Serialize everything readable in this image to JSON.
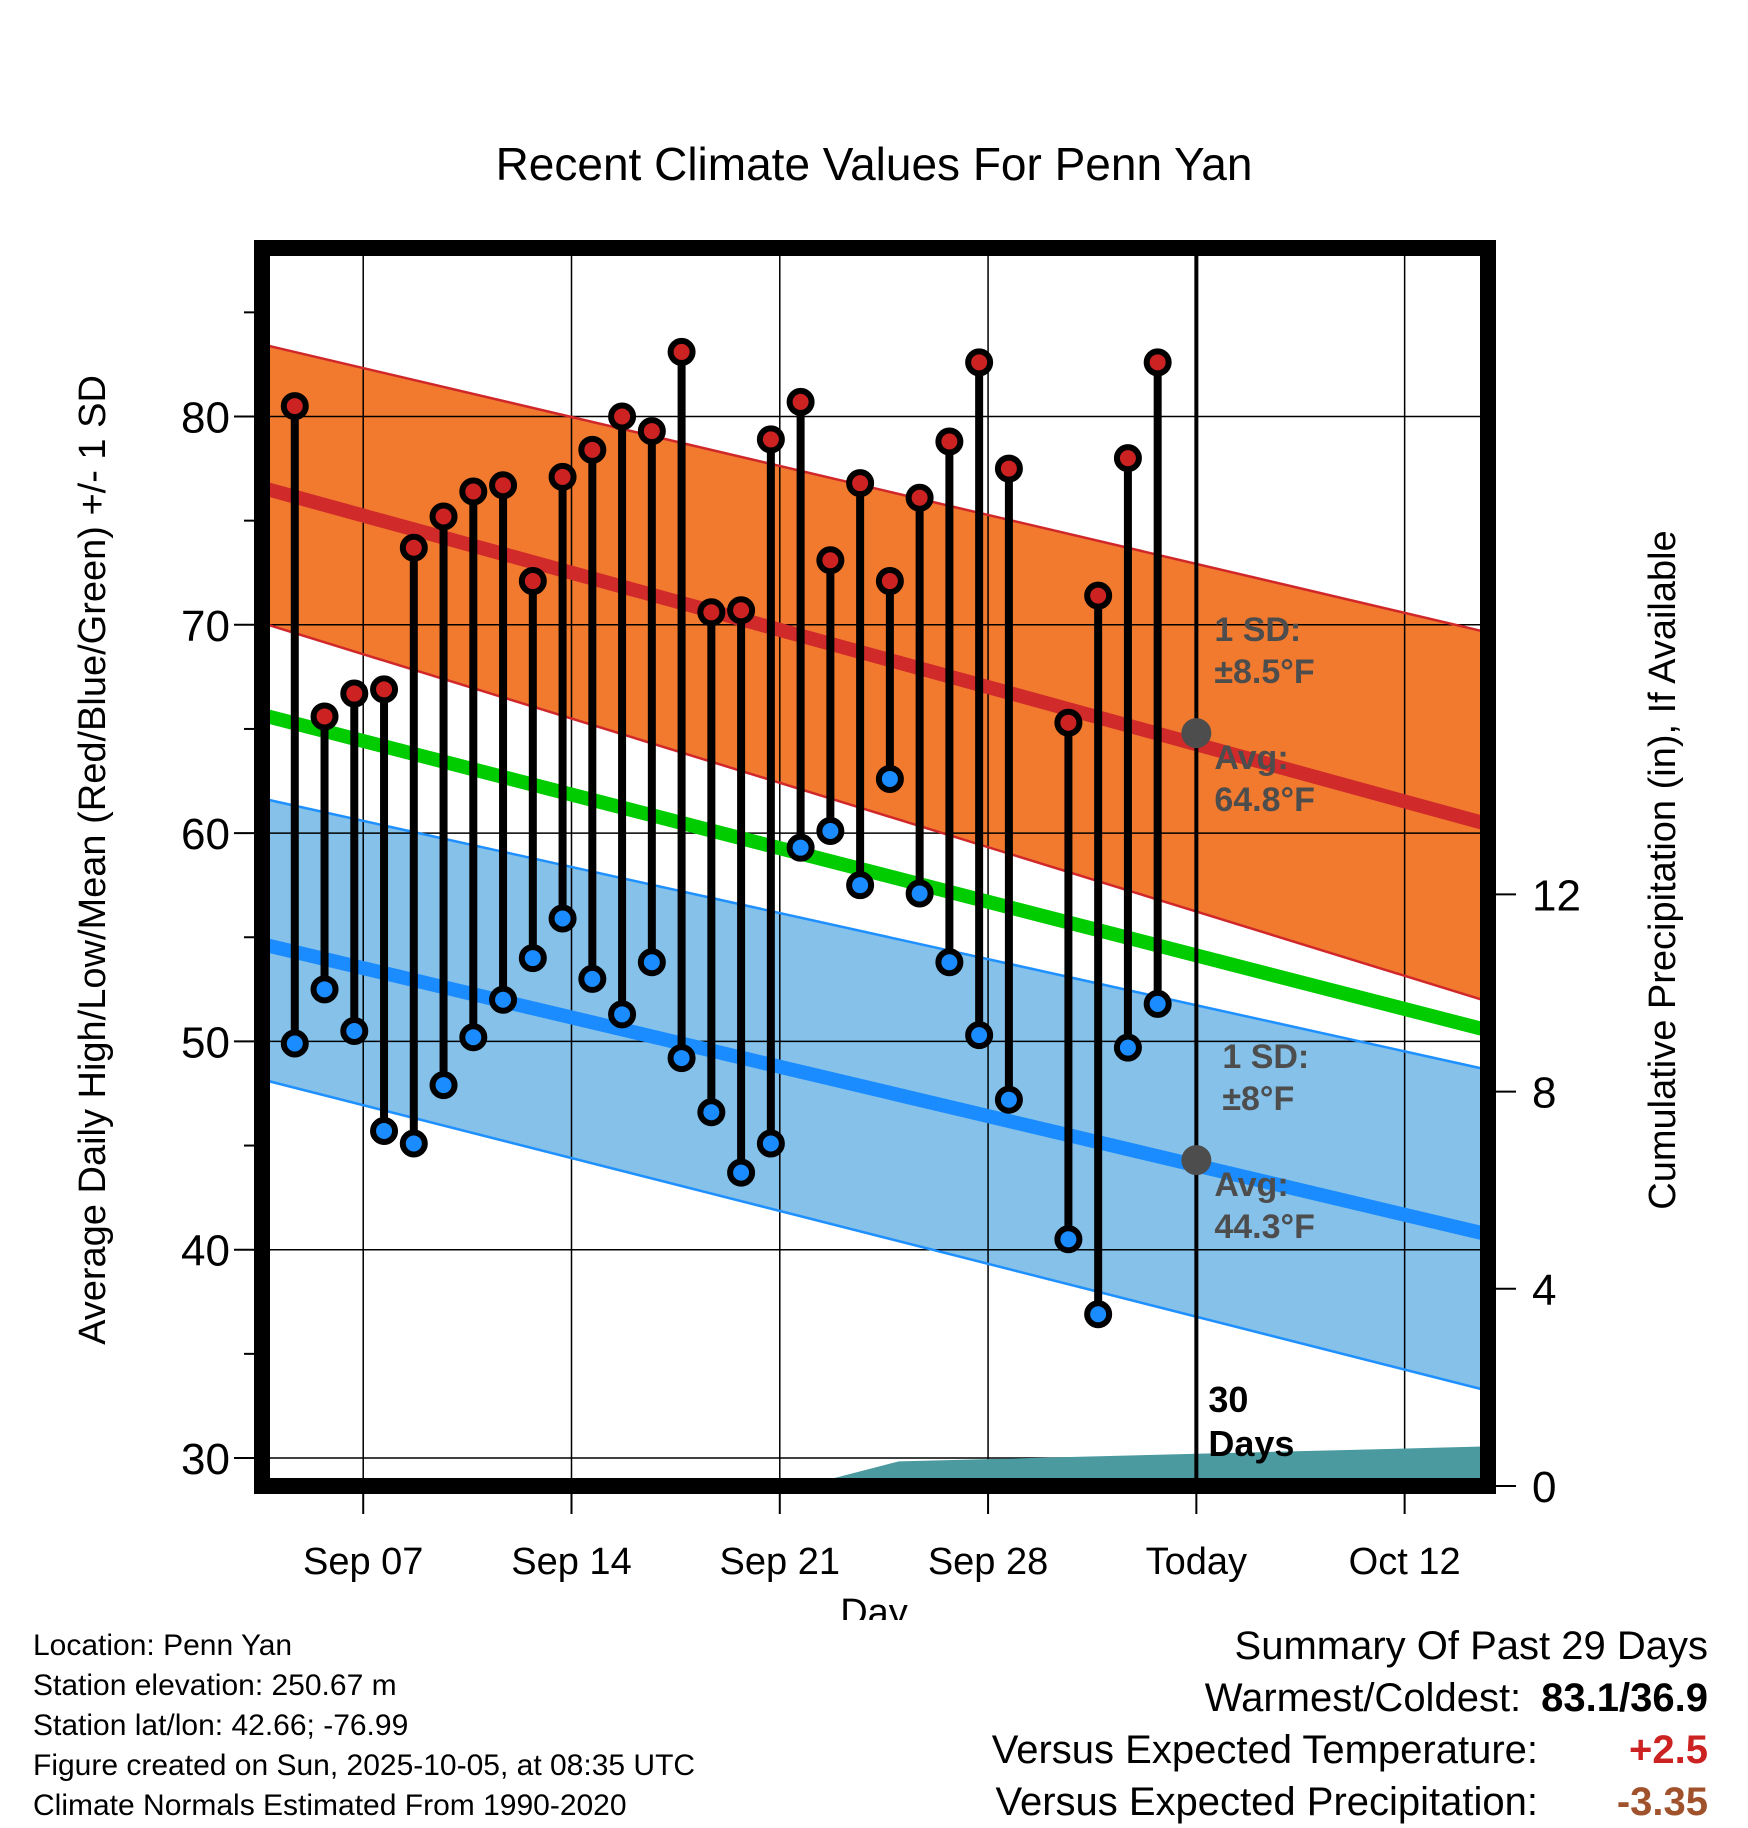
{
  "chart_data": {
    "type": "line",
    "title": "Recent Climate Values For Penn Yan",
    "xlabel": "Day",
    "ylabel": "Average Daily High/Low/Mean (Red/Blue/Green) +/- 1 SD",
    "y2label": "Cumulative Precipitation (in), If Available",
    "ylim": [
      29,
      88
    ],
    "y2lim": [
      0,
      35
    ],
    "yticks": [
      30,
      40,
      50,
      60,
      70,
      80
    ],
    "y2ticks": [
      0,
      4,
      8,
      12
    ],
    "x_tick_labels": [
      {
        "day": 7,
        "label": "Sep 07"
      },
      {
        "day": 14,
        "label": "Sep 14"
      },
      {
        "day": 21,
        "label": "Sep 21"
      },
      {
        "day": 28,
        "label": "Sep 28"
      },
      {
        "day": 35,
        "label": "Today"
      },
      {
        "day": 42,
        "label": "Oct 12"
      }
    ],
    "xlim": [
      3.8,
      44.6
    ],
    "today_day": 35,
    "today_label": "30\nDays",
    "normal_high": {
      "avg_start": 76.5,
      "avg_end": 60.5,
      "upper_start": 83.4,
      "upper_end": 69.7,
      "lower_start": 70.0,
      "lower_end": 52.0
    },
    "normal_low": {
      "avg_start": 54.6,
      "avg_end": 40.8,
      "upper_start": 61.6,
      "upper_end": 48.7,
      "lower_start": 48.1,
      "lower_end": 33.3
    },
    "normal_mean": {
      "start": 65.6,
      "end": 50.6
    },
    "precip_normal": {
      "start_day": 21.8,
      "ramp_end_day": 25.0,
      "value_at_ramp_end": 0.5,
      "end_value": 0.8
    },
    "annotations": {
      "high_sd_label": "1 SD:",
      "high_sd_value": "±8.5°F",
      "high_avg_label": "Avg:",
      "high_avg_value": "64.8°F",
      "low_sd_label": "1 SD:",
      "low_sd_value": "±8°F",
      "low_avg_label": "Avg:",
      "low_avg_value": "44.3°F",
      "today_high_avg": 64.8,
      "today_low_avg": 44.3
    },
    "series": [
      {
        "name": "Daily High",
        "color": "#cc2222",
        "points": [
          [
            4.7,
            80.5
          ],
          [
            5.7,
            65.6
          ],
          [
            6.7,
            66.7
          ],
          [
            7.7,
            66.9
          ],
          [
            8.7,
            73.7
          ],
          [
            9.7,
            75.2
          ],
          [
            10.7,
            76.4
          ],
          [
            11.7,
            76.7
          ],
          [
            12.7,
            72.1
          ],
          [
            13.7,
            77.1
          ],
          [
            14.7,
            78.4
          ],
          [
            15.7,
            80.0
          ],
          [
            16.7,
            79.3
          ],
          [
            17.7,
            83.1
          ],
          [
            18.7,
            70.6
          ],
          [
            19.7,
            70.7
          ],
          [
            20.7,
            78.9
          ],
          [
            21.7,
            80.7
          ],
          [
            22.7,
            73.1
          ],
          [
            23.7,
            76.8
          ],
          [
            24.7,
            72.1
          ],
          [
            25.7,
            76.1
          ],
          [
            26.7,
            78.8
          ],
          [
            27.7,
            82.6
          ],
          [
            28.7,
            77.5
          ],
          [
            30.7,
            65.3
          ],
          [
            31.7,
            71.4
          ],
          [
            32.7,
            78.0
          ],
          [
            33.7,
            82.6
          ]
        ]
      },
      {
        "name": "Daily Low",
        "color": "#1a8cff",
        "points": [
          [
            4.7,
            49.9
          ],
          [
            5.7,
            52.5
          ],
          [
            6.7,
            50.5
          ],
          [
            7.7,
            45.7
          ],
          [
            8.7,
            45.1
          ],
          [
            9.7,
            47.9
          ],
          [
            10.7,
            50.2
          ],
          [
            11.7,
            52.0
          ],
          [
            12.7,
            54.0
          ],
          [
            13.7,
            55.9
          ],
          [
            14.7,
            53.0
          ],
          [
            15.7,
            51.3
          ],
          [
            16.7,
            53.8
          ],
          [
            17.7,
            49.2
          ],
          [
            18.7,
            46.6
          ],
          [
            19.7,
            43.7
          ],
          [
            20.7,
            45.1
          ],
          [
            21.7,
            59.3
          ],
          [
            22.7,
            60.1
          ],
          [
            23.7,
            57.5
          ],
          [
            24.7,
            62.6
          ],
          [
            25.7,
            57.1
          ],
          [
            26.7,
            53.8
          ],
          [
            27.7,
            50.3
          ],
          [
            28.7,
            47.2
          ],
          [
            30.7,
            40.5
          ],
          [
            31.7,
            36.9
          ],
          [
            32.7,
            49.7
          ],
          [
            33.7,
            51.8
          ]
        ]
      }
    ]
  },
  "footer": {
    "location": "Location: Penn Yan",
    "elevation": "Station elevation: 250.67 m",
    "latlon": "Station lat/lon: 42.66; -76.99",
    "created": "Figure created on Sun, 2025-10-05, at 08:35 UTC",
    "normals": "Climate Normals Estimated From 1990-2020"
  },
  "summary": {
    "title": "Summary Of Past 29 Days",
    "warmest_label": "Warmest/Coldest:",
    "warmest_value": "83.1/36.9",
    "temp_label": "Versus Expected Temperature:",
    "temp_value": "+2.5",
    "temp_color": "#cc2222",
    "precip_label": "Versus Expected Precipitation:",
    "precip_value": "-3.35",
    "precip_color": "#a0522d"
  }
}
